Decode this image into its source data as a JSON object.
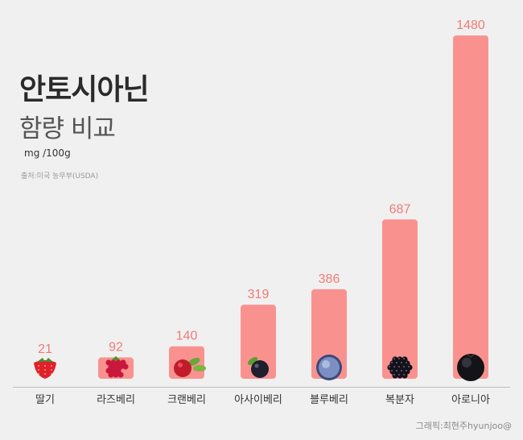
{
  "chart_data": {
    "type": "bar",
    "title": "안토시아닌",
    "subtitle": "함량 비교",
    "unit": "mg /100g",
    "source": "출처:미국 농무부(USDA)",
    "credit": "그래픽:최현주hyunjoo@",
    "categories": [
      "딸기",
      "라즈베리",
      "크랜베리",
      "아사이베리",
      "블루베리",
      "복분자",
      "아로니아"
    ],
    "values": [
      21,
      92,
      140,
      319,
      386,
      687,
      1480
    ],
    "icons": [
      "strawberry-icon",
      "raspberry-icon",
      "cranberry-icon",
      "acai-berry-icon",
      "blueberry-icon",
      "blackberry-icon",
      "aronia-icon"
    ],
    "bar_color": "#f9928f",
    "value_label_color": "#f07b75"
  }
}
